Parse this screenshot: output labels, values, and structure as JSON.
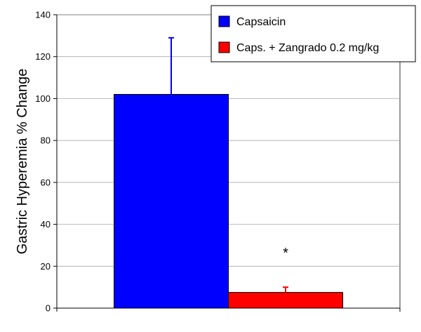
{
  "chart_data": {
    "type": "bar",
    "title": "",
    "xlabel": "",
    "ylabel": "Gastric Hyperemia  % Change",
    "ylim": [
      0,
      140
    ],
    "yticks": [
      0,
      20,
      40,
      60,
      80,
      100,
      120,
      140
    ],
    "grid": true,
    "legend_position": "top-right",
    "series": [
      {
        "name": "Capsaicin",
        "value": 102,
        "error": 27,
        "color": "#0000ff"
      },
      {
        "name": "Caps. + Zangrado 0.2 mg/kg",
        "value": 7.5,
        "error": 2.5,
        "color": "#ff0000"
      }
    ],
    "annotations": [
      {
        "text": "*",
        "series_index": 1
      }
    ]
  }
}
